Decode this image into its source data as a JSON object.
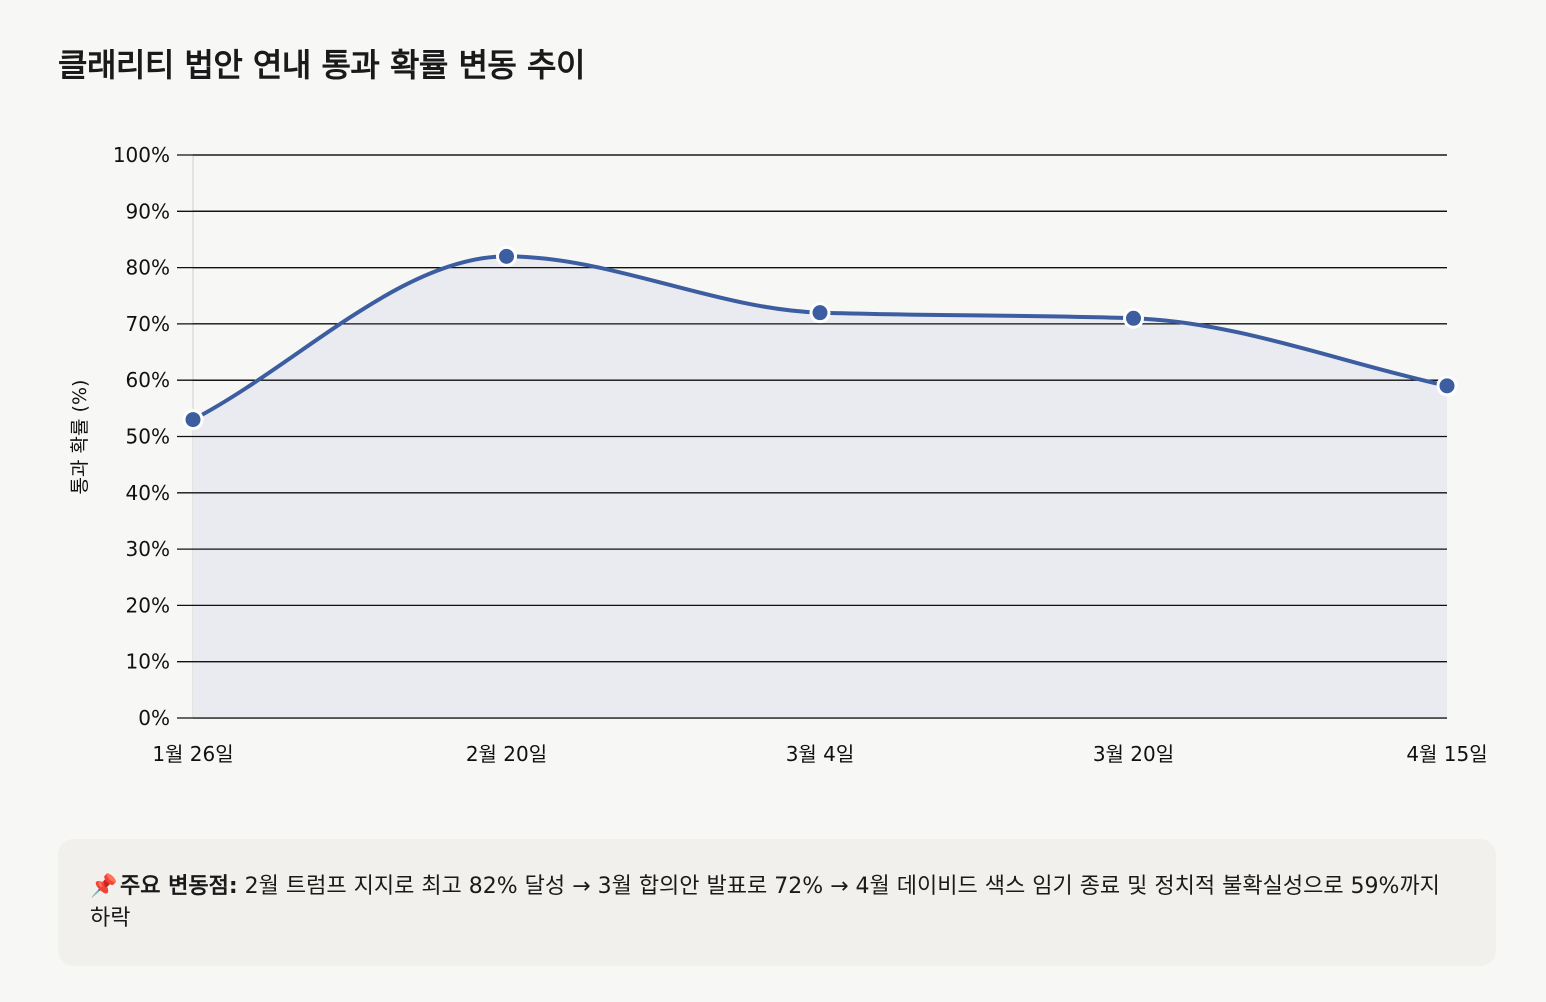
{
  "title": "클래리티 법안 연내 통과 확률 변동 추이",
  "chart_data": {
    "type": "area",
    "title": "클래리티 법안 연내 통과 확률 변동 추이",
    "xlabel": "",
    "ylabel": "통과 확률 (%)",
    "categories": [
      "1월 26일",
      "2월 20일",
      "3월 4일",
      "3월 20일",
      "4월 15일"
    ],
    "values": [
      53,
      82,
      72,
      71,
      59
    ],
    "ylim": [
      0,
      100
    ],
    "yticks": [
      0,
      10,
      20,
      30,
      40,
      50,
      60,
      70,
      80,
      90,
      100
    ],
    "ytick_labels": [
      "0%",
      "10%",
      "20%",
      "30%",
      "40%",
      "50%",
      "60%",
      "70%",
      "80%",
      "90%",
      "100%"
    ],
    "grid": true,
    "legend": "none",
    "line_color": "#3c5ea0",
    "fill_color": "#e9eaef"
  },
  "note": {
    "icon": "pushpin-icon",
    "icon_glyph": "📌",
    "label": "주요 변동점:",
    "text": " 2월 트럼프 지지로 최고 82% 달성 → 3월 합의안 발표로 72% → 4월 데이비드 색스 임기 종료 및 정치적 불확실성으로 59%까지 하락"
  }
}
